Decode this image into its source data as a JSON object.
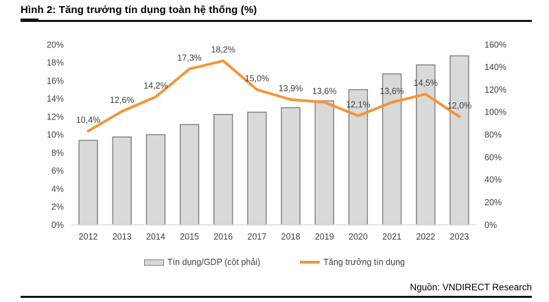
{
  "header": {
    "title": "Hình 2: Tăng trưởng tín dụng toàn hệ thống (%)"
  },
  "legend": {
    "bar_label": "Tín dụng/GDP (cột phải)",
    "line_label": "Tăng trưởng tín dụng"
  },
  "footer": {
    "source": "Nguồn: VNDIRECT Research"
  },
  "colors": {
    "line": "#F79333",
    "bar_fill": "#D9D9D9",
    "bar_border": "#7F7F7F",
    "axis_text": "#404040",
    "label_text": "#404040",
    "baseline": "#D9D9D9",
    "rule": "#151515"
  },
  "chart_data": {
    "type": "bar+line combo",
    "title": "Hình 2: Tăng trưởng tín dụng toàn hệ thống (%)",
    "categories": [
      "2012",
      "2013",
      "2014",
      "2015",
      "2016",
      "2017",
      "2018",
      "2019",
      "2020",
      "2021",
      "2022",
      "2023"
    ],
    "series": [
      {
        "name": "Tín dụng/GDP (cột phải)",
        "type": "bar",
        "axis": "right",
        "values": [
          75,
          78,
          80,
          89,
          98,
          100,
          104,
          110,
          120,
          134,
          142,
          150
        ]
      },
      {
        "name": "Tăng trưởng tín dụng",
        "type": "line",
        "axis": "left",
        "values": [
          10.4,
          12.6,
          14.2,
          17.3,
          18.2,
          15.0,
          13.9,
          13.6,
          12.1,
          13.6,
          14.5,
          12.0
        ],
        "labels": [
          "10,4%",
          "12,6%",
          "14,2%",
          "17,3%",
          "18,2%",
          "15,0%",
          "13,9%",
          "13,6%",
          "12,1%",
          "13,6%",
          "14,5%",
          "12,0%"
        ]
      }
    ],
    "left_axis": {
      "min": 0,
      "max": 20,
      "step": 2,
      "ticks": [
        "0%",
        "2%",
        "4%",
        "6%",
        "8%",
        "10%",
        "12%",
        "14%",
        "16%",
        "18%",
        "20%"
      ]
    },
    "right_axis": {
      "min": 0,
      "max": 160,
      "step": 20,
      "ticks": [
        "0%",
        "20%",
        "40%",
        "60%",
        "80%",
        "100%",
        "120%",
        "140%",
        "160%"
      ]
    },
    "grid": false,
    "legend_position": "bottom"
  }
}
